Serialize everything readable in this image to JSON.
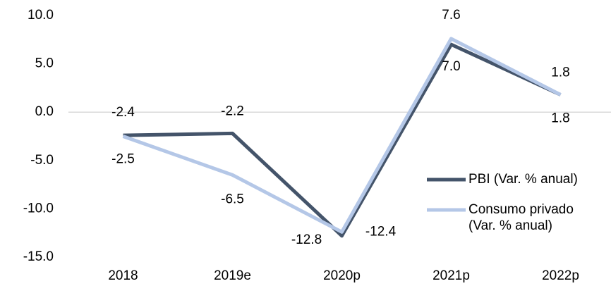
{
  "chart_data": {
    "type": "line",
    "categories": [
      "2018",
      "2019e",
      "2020p",
      "2021p",
      "2022p"
    ],
    "series": [
      {
        "name": "PBI (Var. % anual)",
        "color": "#44546a",
        "values": [
          -2.4,
          -2.2,
          -12.8,
          7.0,
          1.8
        ],
        "value_labels": [
          "-2.4",
          "-2.2",
          "-12.8",
          "7.0",
          "1.8"
        ]
      },
      {
        "name": "Consumo privado (Var. % anual)",
        "color": "#b4c7e7",
        "values": [
          -2.5,
          -6.5,
          -12.4,
          7.6,
          1.8
        ],
        "value_labels": [
          "-2.5",
          "-6.5",
          "-12.4",
          "7.6",
          "1.8"
        ]
      }
    ],
    "ylim": [
      -15,
      10
    ],
    "yticks": [
      {
        "value": -15,
        "label": "-15.0"
      },
      {
        "value": -10,
        "label": "-10.0"
      },
      {
        "value": -5,
        "label": "-5.0"
      },
      {
        "value": 0,
        "label": "0.0"
      },
      {
        "value": 5,
        "label": "5.0"
      },
      {
        "value": 10,
        "label": "10.0"
      }
    ],
    "grid": false,
    "legend": "right"
  }
}
